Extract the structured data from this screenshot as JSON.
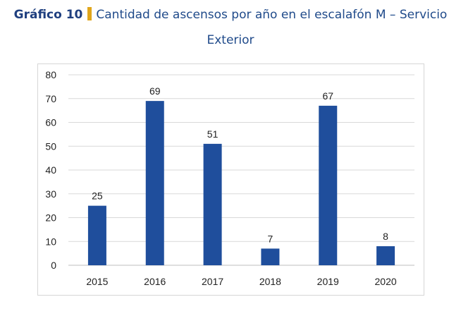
{
  "title": {
    "figure_label": "Gráfico 10",
    "line1": "Cantidad de ascensos por año en el escalafón M – Servicio",
    "line2": "Exterior"
  },
  "colors": {
    "bar": "#1f4e9c",
    "accent": "#e0a61c",
    "title": "#1f4a8a",
    "grid": "#d9d9d9"
  },
  "chart_data": {
    "type": "bar",
    "title": "Gráfico 10 Cantidad de ascensos por año en el escalafón M – Servicio Exterior",
    "categories": [
      "2015",
      "2016",
      "2017",
      "2018",
      "2019",
      "2020"
    ],
    "values": [
      25,
      69,
      51,
      7,
      67,
      8
    ],
    "ylim": [
      0,
      80
    ],
    "yticks": [
      0,
      10,
      20,
      30,
      40,
      50,
      60,
      70,
      80
    ],
    "xlabel": "",
    "ylabel": "",
    "grid": true,
    "legend": "none",
    "data_labels": true
  }
}
